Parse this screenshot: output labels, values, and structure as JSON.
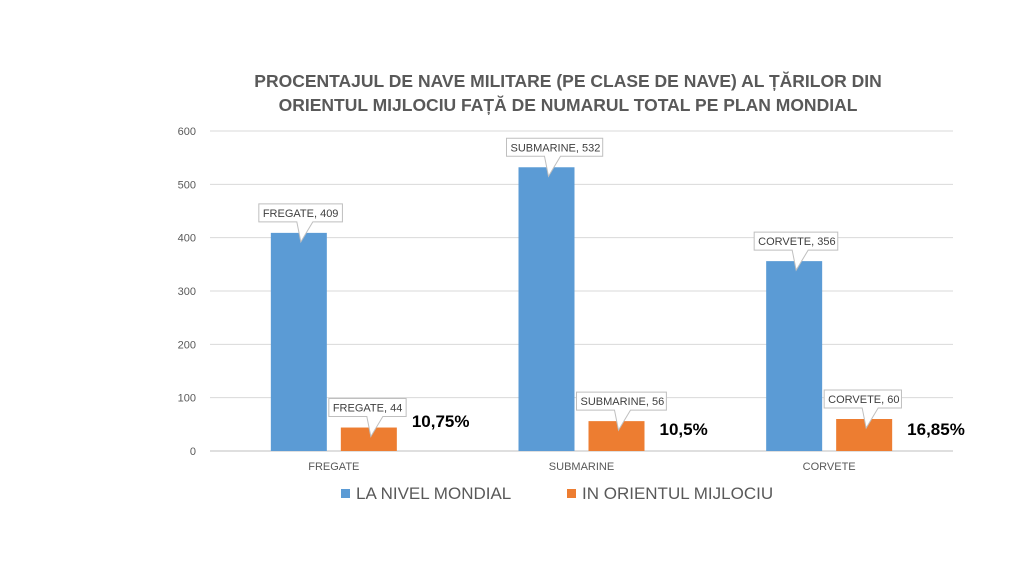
{
  "chart_data": {
    "type": "bar",
    "title_lines": [
      "PROCENTAJUL DE NAVE MILITARE (PE CLASE DE NAVE) AL ȚĂRILOR DIN",
      "ORIENTUL MIJLOCIU FAȚĂ DE NUMARUL TOTAL PE PLAN MONDIAL"
    ],
    "categories": [
      "FREGATE",
      "SUBMARINE",
      "CORVETE"
    ],
    "series": [
      {
        "name": "LA NIVEL MONDIAL",
        "color": "#5B9BD5",
        "values": [
          409,
          532,
          356
        ]
      },
      {
        "name": "IN ORIENTUL MIJLOCIU",
        "color": "#ED7D31",
        "values": [
          44,
          56,
          60
        ]
      }
    ],
    "data_labels": [
      [
        "FREGATE, 409",
        "SUBMARINE, 532",
        "CORVETE, 356"
      ],
      [
        "FREGATE, 44",
        "SUBMARINE, 56",
        "CORVETE, 60"
      ]
    ],
    "annotations": [
      "10,75%",
      "10,5%",
      "16,85%"
    ],
    "yticks": [
      "0",
      "100",
      "200",
      "300",
      "400",
      "500",
      "600"
    ],
    "ylim": [
      0,
      600
    ],
    "grid": true,
    "legend_position": "bottom"
  }
}
